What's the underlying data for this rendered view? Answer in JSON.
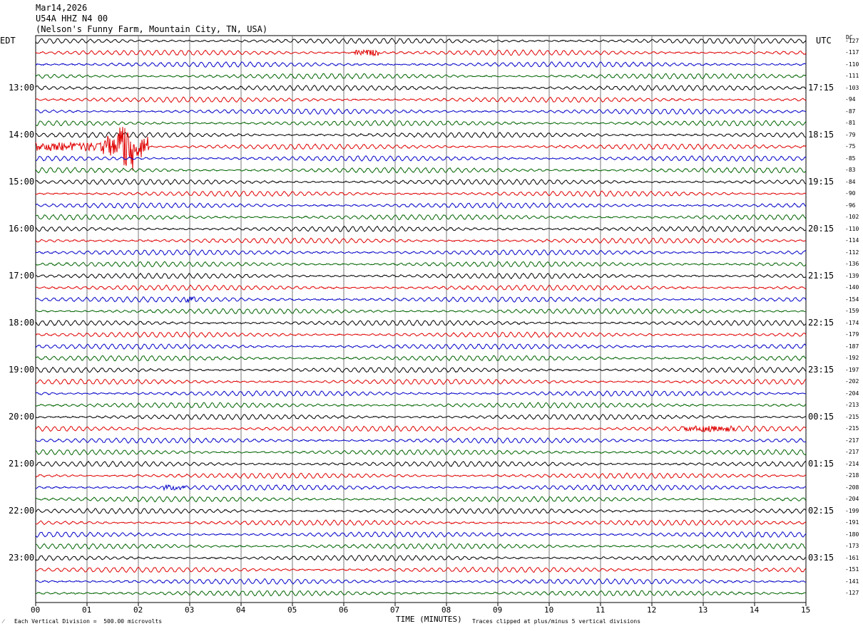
{
  "header": {
    "date": "Mar14,2026",
    "station": "U54A HHZ N4 00",
    "location": "(Nelson's Funny Farm, Mountain City, TN, USA)"
  },
  "left_axis_title": "EDT",
  "right_axis_title": "UTC",
  "dc_title": "DC",
  "x_axis_title": "TIME (MINUTES)",
  "scale_note": "Each Vertical Division =  500.00 microvolts",
  "clip_note": "Traces clipped at plus/minus 5 vertical divisions",
  "chart_data": {
    "type": "line",
    "description_type": "helicorder seismogram",
    "x": [
      "00",
      "01",
      "02",
      "03",
      "04",
      "05",
      "06",
      "07",
      "08",
      "09",
      "10",
      "11",
      "12",
      "13",
      "14",
      "15"
    ],
    "xlim": [
      0,
      15
    ],
    "trace_colors": [
      "#000000",
      "#e00000",
      "#0000c8",
      "#006400"
    ],
    "left_hour_labels": [
      "13:00",
      "14:00",
      "15:00",
      "16:00",
      "17:00",
      "18:00",
      "19:00",
      "20:00",
      "21:00",
      "22:00",
      "23:00"
    ],
    "right_hour_labels": [
      "17:15",
      "18:15",
      "19:15",
      "20:15",
      "21:15",
      "22:15",
      "23:15",
      "00:15",
      "01:15",
      "02:15",
      "03:15"
    ],
    "dc_offsets": [
      -127,
      -117,
      -110,
      -111,
      -103,
      -94,
      -87,
      -81,
      -79,
      -75,
      -85,
      -83,
      -84,
      -90,
      -96,
      -102,
      -110,
      -114,
      -112,
      -136,
      -139,
      -140,
      -154,
      -159,
      -174,
      -179,
      -187,
      -192,
      -197,
      -202,
      -204,
      -213,
      -215,
      -215,
      -217,
      -217,
      -214,
      -218,
      -208,
      -204,
      -199,
      -191,
      -180,
      -173,
      -161,
      -151,
      -141,
      -127
    ],
    "events": [
      {
        "trace": 9,
        "minute_start": 0.0,
        "minute_end": 2.2,
        "peak_minute": 1.75,
        "amplitude": "large"
      },
      {
        "trace": 1,
        "minute_start": 6.2,
        "minute_end": 6.7,
        "amplitude": "small"
      },
      {
        "trace": 33,
        "minute_start": 12.6,
        "minute_end": 13.6,
        "amplitude": "small"
      },
      {
        "trace": 38,
        "minute_start": 2.5,
        "minute_end": 2.9,
        "amplitude": "small"
      },
      {
        "trace": 22,
        "minute_start": 2.9,
        "minute_end": 3.1,
        "amplitude": "small"
      }
    ],
    "clip_divisions": 5,
    "scale_microvolts_per_division": 500.0
  }
}
